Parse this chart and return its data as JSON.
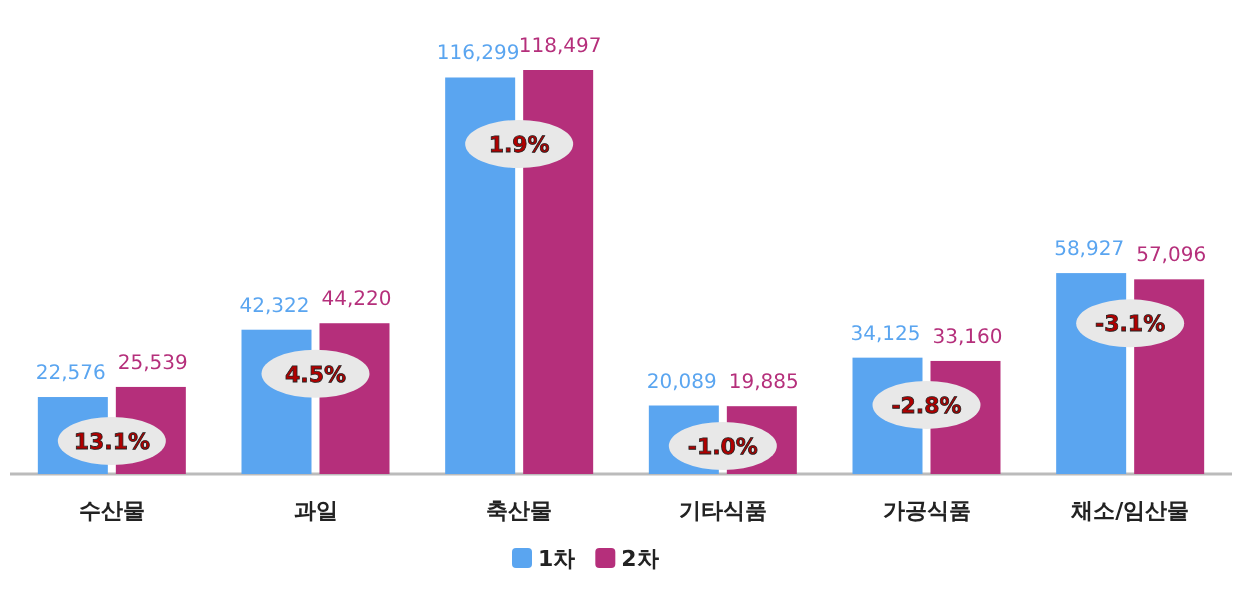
{
  "chart_data": {
    "type": "bar",
    "categories": [
      "수산물",
      "과일",
      "축산물",
      "기타식품",
      "가공식품",
      "채소/임산물"
    ],
    "series": [
      {
        "name": "1차",
        "color": "#5aa5f0",
        "values": [
          22576,
          42322,
          116299,
          20089,
          34125,
          58927
        ],
        "value_labels": [
          "22,576",
          "42,322",
          "116,299",
          "20,089",
          "34,125",
          "58,927"
        ]
      },
      {
        "name": "2차",
        "color": "#b52f7b",
        "values": [
          25539,
          44220,
          118497,
          19885,
          33160,
          57096
        ],
        "value_labels": [
          "25,539",
          "44,220",
          "118,497",
          "19,885",
          "33,160",
          "57,096"
        ]
      }
    ],
    "legend": "bottom",
    "annotations": [
      {
        "text": "13.1%",
        "x": "수산물"
      },
      {
        "text": "4.5%",
        "x": "과일"
      },
      {
        "text": "1.9%",
        "x": "축산물"
      },
      {
        "text": "-1.0%",
        "x": "기타식품"
      },
      {
        "text": "-2.8%",
        "x": "가공식품"
      },
      {
        "text": "-3.1%",
        "x": "채소/임산물"
      }
    ]
  }
}
